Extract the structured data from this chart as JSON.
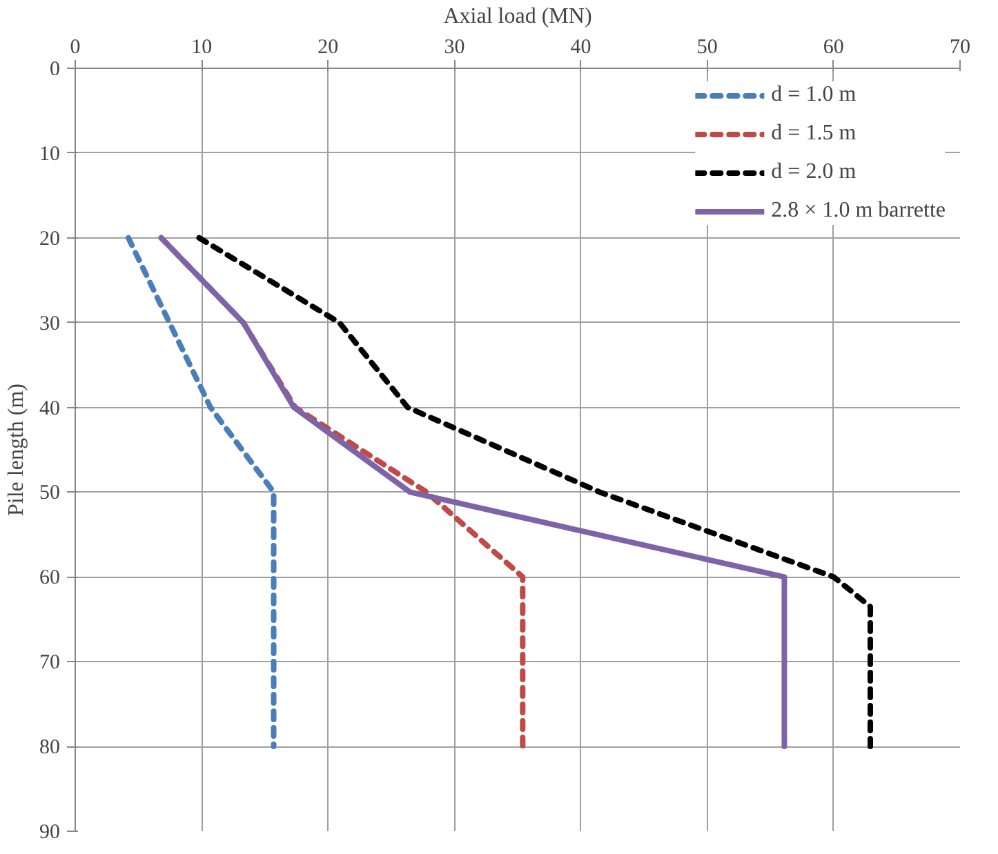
{
  "chart_data": {
    "type": "line",
    "xlabel": "Axial load (MN)",
    "ylabel": "Pile length (m)",
    "xlim": [
      0,
      70
    ],
    "xticks": [
      0,
      10,
      20,
      30,
      40,
      50,
      60,
      70
    ],
    "ylim": [
      90,
      0
    ],
    "yticks": [
      0,
      10,
      20,
      30,
      40,
      50,
      60,
      70,
      80,
      90
    ],
    "grid": true,
    "legend": "top right",
    "marker": "none",
    "series": [
      {
        "name": "d = 1.0 m",
        "color": "#4a7ebb",
        "line_style": "dashed",
        "x": [
          4.2,
          10.7,
          15.7,
          15.7
        ],
        "values": [
          20,
          40,
          50,
          80
        ]
      },
      {
        "name": "d = 1.5 m",
        "color": "#be4b48",
        "line_style": "dashed",
        "x": [
          6.8,
          13.3,
          17.4,
          27.8,
          35.4,
          35.4
        ],
        "values": [
          20,
          30,
          40,
          50,
          60,
          80
        ]
      },
      {
        "name": "d = 2.0 m",
        "color": "#000000",
        "line_style": "dashed",
        "x": [
          9.8,
          20.9,
          26.3,
          41.5,
          60,
          62.9,
          62.9
        ],
        "values": [
          20,
          30,
          40,
          50,
          60,
          63.5,
          80
        ]
      },
      {
        "name": "2.8 × 1.0 m barrette",
        "color": "#7f63a8",
        "line_style": "solid",
        "x": [
          6.8,
          13.3,
          17.3,
          26.5,
          56.1,
          56.1
        ],
        "values": [
          20,
          30,
          40,
          50,
          60,
          80
        ]
      }
    ]
  }
}
